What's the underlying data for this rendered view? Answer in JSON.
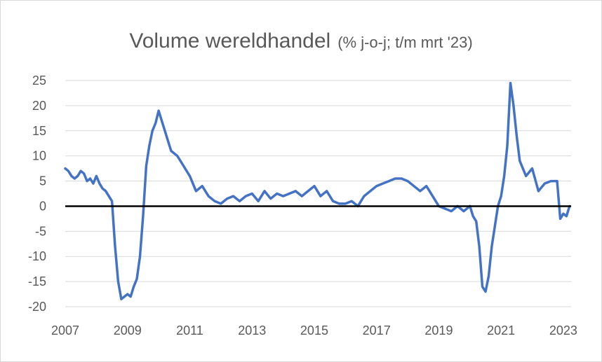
{
  "chart_data": {
    "type": "line",
    "title": "Volume wereldhandel",
    "subtitle": "(% j-o-j; t/m mrt '23)",
    "xlabel": "",
    "ylabel": "",
    "xlim": [
      2007,
      2023.25
    ],
    "ylim": [
      -20,
      25
    ],
    "x_ticks": [
      "2007",
      "2009",
      "2011",
      "2013",
      "2015",
      "2017",
      "2019",
      "2021",
      "2023"
    ],
    "y_ticks": [
      "25",
      "20",
      "15",
      "10",
      "5",
      "0",
      "-5",
      "-10",
      "-15",
      "-20"
    ],
    "grid": "horizontal",
    "zero_line": true,
    "series": [
      {
        "color": "#4472c4",
        "x": [
          2007.0,
          2007.1,
          2007.2,
          2007.3,
          2007.4,
          2007.5,
          2007.6,
          2007.7,
          2007.8,
          2007.9,
          2008.0,
          2008.1,
          2008.2,
          2008.3,
          2008.4,
          2008.5,
          2008.6,
          2008.7,
          2008.8,
          2008.9,
          2009.0,
          2009.1,
          2009.2,
          2009.3,
          2009.4,
          2009.5,
          2009.6,
          2009.7,
          2009.8,
          2009.9,
          2010.0,
          2010.1,
          2010.2,
          2010.3,
          2010.4,
          2010.5,
          2010.6,
          2010.7,
          2010.8,
          2010.9,
          2011.0,
          2011.2,
          2011.4,
          2011.6,
          2011.8,
          2012.0,
          2012.2,
          2012.4,
          2012.6,
          2012.8,
          2013.0,
          2013.2,
          2013.4,
          2013.6,
          2013.8,
          2014.0,
          2014.2,
          2014.4,
          2014.6,
          2014.8,
          2015.0,
          2015.2,
          2015.4,
          2015.6,
          2015.8,
          2016.0,
          2016.2,
          2016.4,
          2016.6,
          2016.8,
          2017.0,
          2017.2,
          2017.4,
          2017.6,
          2017.8,
          2018.0,
          2018.2,
          2018.4,
          2018.6,
          2018.8,
          2019.0,
          2019.2,
          2019.4,
          2019.6,
          2019.8,
          2020.0,
          2020.1,
          2020.2,
          2020.3,
          2020.4,
          2020.5,
          2020.6,
          2020.7,
          2020.8,
          2020.9,
          2021.0,
          2021.1,
          2021.2,
          2021.3,
          2021.4,
          2021.5,
          2021.6,
          2021.8,
          2022.0,
          2022.2,
          2022.4,
          2022.6,
          2022.8,
          2022.9,
          2023.0,
          2023.1,
          2023.2
        ],
        "values": [
          7.5,
          7,
          6,
          5.5,
          6,
          7,
          6.5,
          5,
          5.5,
          4.5,
          6,
          4.5,
          3.5,
          3,
          2,
          1,
          -8,
          -15,
          -18.5,
          -18,
          -17.5,
          -18,
          -16,
          -14.5,
          -10,
          -2,
          8,
          12,
          15,
          16.5,
          19,
          17,
          15,
          13,
          11,
          10.5,
          10,
          9,
          8,
          7,
          6,
          3,
          4,
          2,
          1,
          0.5,
          1.5,
          2,
          1,
          2,
          2.5,
          1,
          3,
          1.5,
          2.5,
          2,
          2.5,
          3,
          2,
          3,
          4,
          2,
          3,
          1,
          0.5,
          0.5,
          1,
          0,
          2,
          3,
          4,
          4.5,
          5,
          5.5,
          5.5,
          5,
          4,
          3,
          4,
          2,
          0,
          -0.5,
          -1,
          0,
          -1,
          0,
          -2,
          -3,
          -8,
          -16,
          -17,
          -14,
          -8,
          -4,
          0,
          2,
          6,
          12,
          24.5,
          20,
          14,
          9,
          6,
          7.5,
          3,
          4.5,
          5,
          5,
          -2.5,
          -1.5,
          -2,
          0
        ]
      }
    ]
  }
}
